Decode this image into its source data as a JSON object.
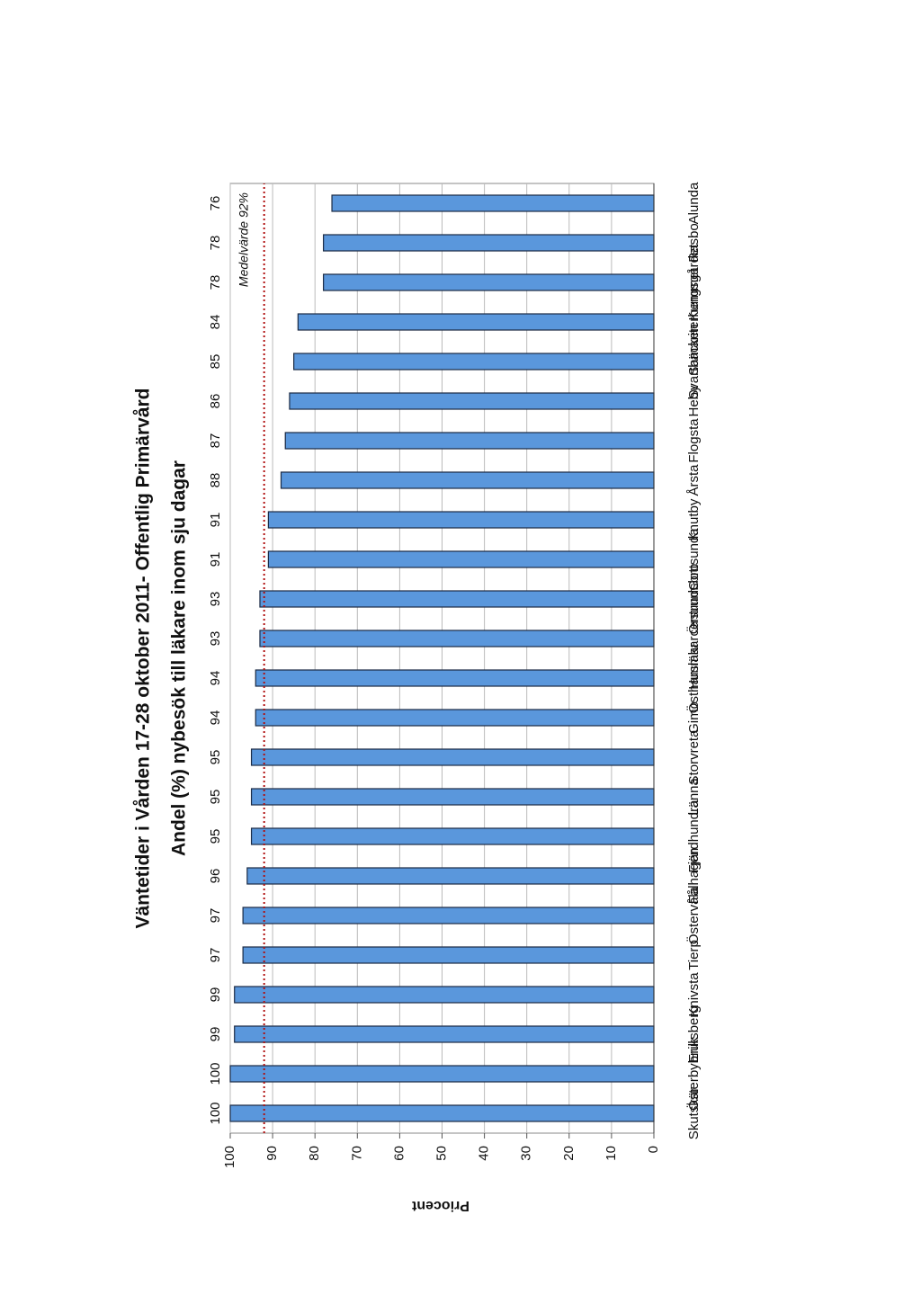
{
  "chart_data": {
    "type": "bar",
    "title": "Väntetider i Vården 17-28 oktober 2011- Offentlig Primärvård",
    "subtitle": "Andel (%) nybesök till läkare inom sju dagar",
    "ylabel": "Priocent",
    "categories": [
      "Skutskär",
      "Österbybruk",
      "Eriksberg",
      "Knivsta",
      "Tierp",
      "Östervåla",
      "Fålhagen",
      "Fjärdhundra",
      "Länna",
      "Storvreta",
      "Gimo",
      "Östhammar",
      "Husläkarcentrum",
      "Örsundsbro",
      "Gottsunda",
      "Knutby",
      "Årsta",
      "Flogsta",
      "Heby",
      "Svartbäcken",
      "Samariterhemmet",
      "Kungsgårdet",
      "Rasbo",
      "Alunda"
    ],
    "values": [
      100,
      100,
      99,
      99,
      97,
      97,
      96,
      95,
      95,
      95,
      94,
      94,
      93,
      93,
      91,
      91,
      88,
      87,
      86,
      85,
      84,
      78,
      78,
      76
    ],
    "color": "#5a97dc",
    "ylim": [
      0,
      100
    ],
    "yticks": [
      0,
      10,
      20,
      30,
      40,
      50,
      60,
      70,
      80,
      90,
      100
    ],
    "grid": true,
    "mean_line": {
      "value": 92,
      "label": "Medelvärde 92%",
      "color": "#b01010"
    }
  }
}
